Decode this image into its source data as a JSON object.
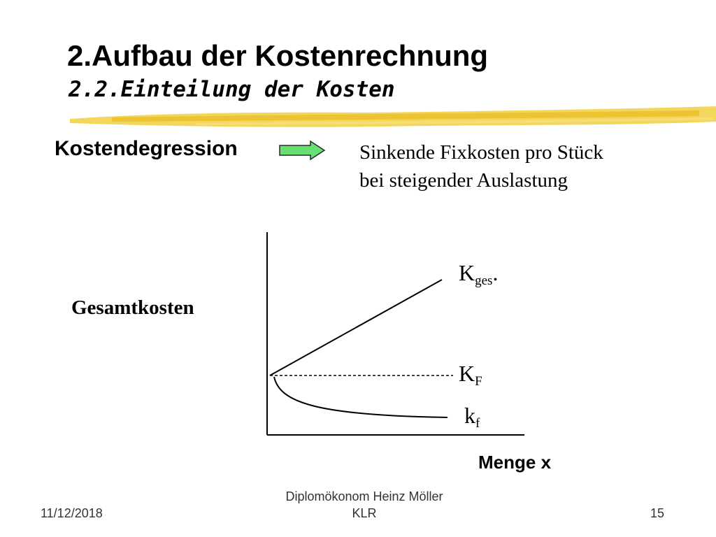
{
  "header": {
    "title": "2.Aufbau der Kostenrechnung",
    "subtitle": "2.2.Einteilung der Kosten"
  },
  "content": {
    "term": "Kostendegression",
    "definition_line1": "Sinkende Fixkosten pro Stück",
    "definition_line2": "bei steigender Auslastung",
    "arrow_icon": "right-arrow-icon",
    "arrow_color": "#66e070",
    "highlight_color": "#f2d24a"
  },
  "diagram": {
    "y_label": "Gesamtkosten",
    "x_label": "Menge x",
    "curves": {
      "total_cost": {
        "main": "K",
        "sub": "ges",
        "suffix": "."
      },
      "fixed_cost": {
        "main": "K",
        "sub": "F"
      },
      "unit_fixed_cost": {
        "main": "k",
        "sub": "f"
      }
    }
  },
  "footer": {
    "date": "11/12/2018",
    "author_line1": "Diplomökonom Heinz Möller",
    "author_line2": "KLR",
    "page": "15"
  }
}
